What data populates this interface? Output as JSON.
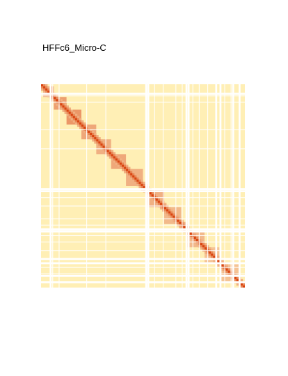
{
  "chart_data": {
    "type": "heatmap",
    "title": "HFFc6_Micro-C",
    "colors": {
      "background": "#ffefb5",
      "low": "#fff3c8",
      "high": "#d94410",
      "gap": "#ffffff"
    },
    "matrix_size": 96,
    "diagonal_peak": 1.0,
    "gap_bins": [
      4,
      49,
      50,
      68,
      69,
      82,
      84,
      90,
      93
    ],
    "thin_gap_bins": [
      5,
      8,
      21,
      30,
      53,
      57,
      63,
      66,
      71,
      74,
      78,
      86,
      89
    ],
    "domains": [
      {
        "start": 1,
        "end": 6,
        "strength": 0.35
      },
      {
        "start": 6,
        "end": 12,
        "strength": 0.4
      },
      {
        "start": 12,
        "end": 19,
        "strength": 0.45
      },
      {
        "start": 19,
        "end": 26,
        "strength": 0.35
      },
      {
        "start": 26,
        "end": 33,
        "strength": 0.3
      },
      {
        "start": 33,
        "end": 40,
        "strength": 0.35
      },
      {
        "start": 40,
        "end": 48,
        "strength": 0.3
      },
      {
        "start": 50,
        "end": 58,
        "strength": 0.3
      },
      {
        "start": 58,
        "end": 66,
        "strength": 0.25
      },
      {
        "start": 69,
        "end": 77,
        "strength": 0.25
      },
      {
        "start": 77,
        "end": 84,
        "strength": 0.2
      },
      {
        "start": 85,
        "end": 93,
        "strength": 0.2
      }
    ]
  }
}
